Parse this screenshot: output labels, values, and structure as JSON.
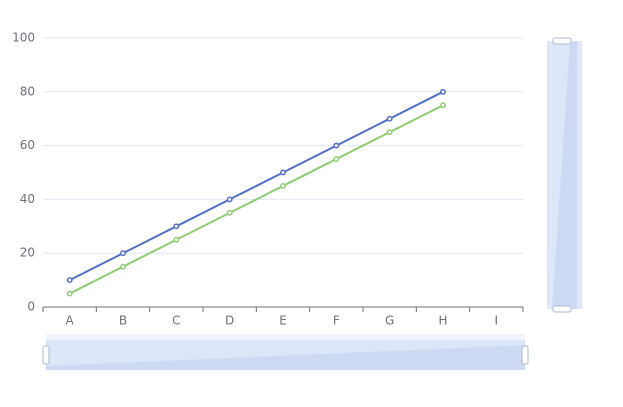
{
  "chart_data": {
    "type": "line",
    "categories": [
      "A",
      "B",
      "C",
      "D",
      "E",
      "F",
      "G",
      "H",
      "I"
    ],
    "series": [
      {
        "color": "#5470c6",
        "values": [
          10,
          20,
          30,
          40,
          50,
          60,
          70,
          80,
          null
        ]
      },
      {
        "color": "#91cc75",
        "values": [
          5,
          15,
          25,
          35,
          45,
          55,
          65,
          75,
          null
        ]
      }
    ],
    "ylim": [
      0,
      100
    ],
    "yticks": [
      0,
      20,
      40,
      60,
      80,
      100
    ],
    "grid": true
  }
}
